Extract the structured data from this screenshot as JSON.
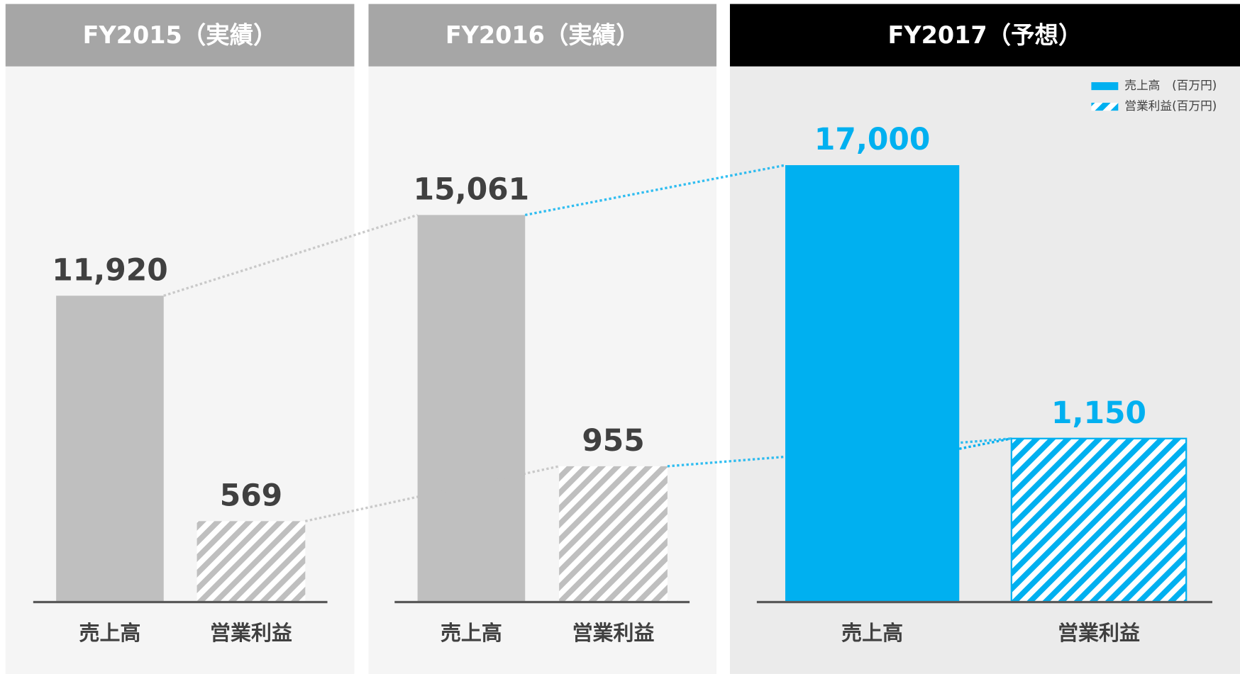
{
  "chart_data": [
    {
      "type": "bar",
      "title": "FY2015（実績）",
      "header_color": "#a6a6a6",
      "color": "#bfbfbf",
      "label_color": "#404040",
      "categories": [
        "売上高",
        "営業利益"
      ],
      "values": [
        11920,
        569
      ],
      "value_labels": [
        "11,920",
        "569"
      ]
    },
    {
      "type": "bar",
      "title": "FY2016（実績）",
      "header_color": "#a6a6a6",
      "color": "#bfbfbf",
      "label_color": "#404040",
      "categories": [
        "売上高",
        "営業利益"
      ],
      "values": [
        15061,
        955
      ],
      "value_labels": [
        "15,061",
        "955"
      ]
    },
    {
      "type": "bar",
      "title": "FY2017（予想）",
      "header_color": "#000000",
      "color": "#00b0f0",
      "label_color": "#00b0f0",
      "categories": [
        "売上高",
        "営業利益"
      ],
      "values": [
        17000,
        1150
      ],
      "value_labels": [
        "17,000",
        "1,150"
      ],
      "legend": [
        "売上高　(百万円)",
        "営業利益(百万円)"
      ]
    }
  ]
}
